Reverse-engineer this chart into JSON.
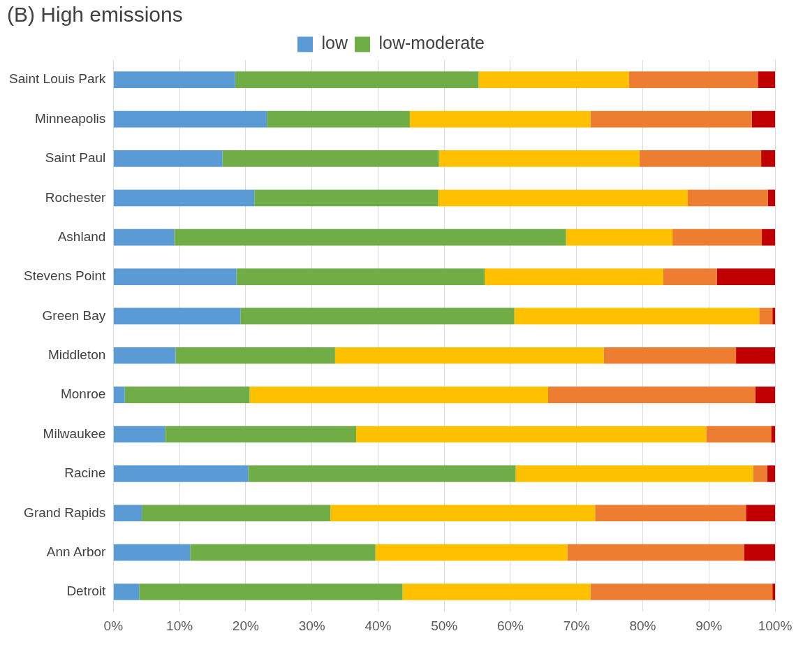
{
  "chart_data": {
    "type": "bar",
    "orientation": "horizontal",
    "stacked": true,
    "title": "(B) High emissions",
    "categories": [
      "Saint Louis Park",
      "Minneapolis",
      "Saint Paul",
      "Rochester",
      "Ashland",
      "Stevens Point",
      "Green Bay",
      "Middleton",
      "Monroe",
      "Milwaukee",
      "Racine",
      "Grand Rapids",
      "Ann Arbor",
      "Detroit"
    ],
    "series": [
      {
        "name": "low",
        "color": "#5b9bd5",
        "values": [
          18.4,
          23.2,
          16.5,
          21.3,
          9.2,
          18.6,
          19.2,
          9.4,
          1.7,
          7.8,
          20.4,
          4.3,
          11.6,
          3.9
        ]
      },
      {
        "name": "low-moderate",
        "color": "#70ad47",
        "values": [
          36.8,
          21.6,
          32.7,
          27.8,
          59.2,
          37.5,
          41.4,
          24.1,
          18.9,
          28.9,
          40.4,
          28.5,
          28.0,
          39.8
        ]
      },
      {
        "color": "#ffc000",
        "values": [
          22.7,
          27.3,
          30.3,
          37.7,
          16.1,
          27.0,
          37.0,
          40.6,
          45.1,
          52.9,
          35.9,
          40.0,
          29.0,
          28.4
        ]
      },
      {
        "color": "#ed7d31",
        "values": [
          19.5,
          24.4,
          18.4,
          12.1,
          13.5,
          8.1,
          2.0,
          20.0,
          31.3,
          9.8,
          2.1,
          22.8,
          26.7,
          27.5
        ]
      },
      {
        "color": "#c00000",
        "values": [
          2.6,
          3.5,
          2.1,
          1.1,
          2.0,
          8.8,
          0.4,
          5.9,
          3.0,
          0.6,
          1.2,
          4.4,
          4.7,
          0.4
        ]
      }
    ],
    "xlim": [
      0,
      100
    ],
    "xticks": [
      {
        "value": 0,
        "label": "0%"
      },
      {
        "value": 10,
        "label": "10%"
      },
      {
        "value": 20,
        "label": "20%"
      },
      {
        "value": 30,
        "label": "30%"
      },
      {
        "value": 40,
        "label": "40%"
      },
      {
        "value": 50,
        "label": "50%"
      },
      {
        "value": 60,
        "label": "60%"
      },
      {
        "value": 70,
        "label": "70%"
      },
      {
        "value": 80,
        "label": "80%"
      },
      {
        "value": 90,
        "label": "90%"
      },
      {
        "value": 100,
        "label": "100%"
      }
    ],
    "grid": "x",
    "legend": "top"
  }
}
